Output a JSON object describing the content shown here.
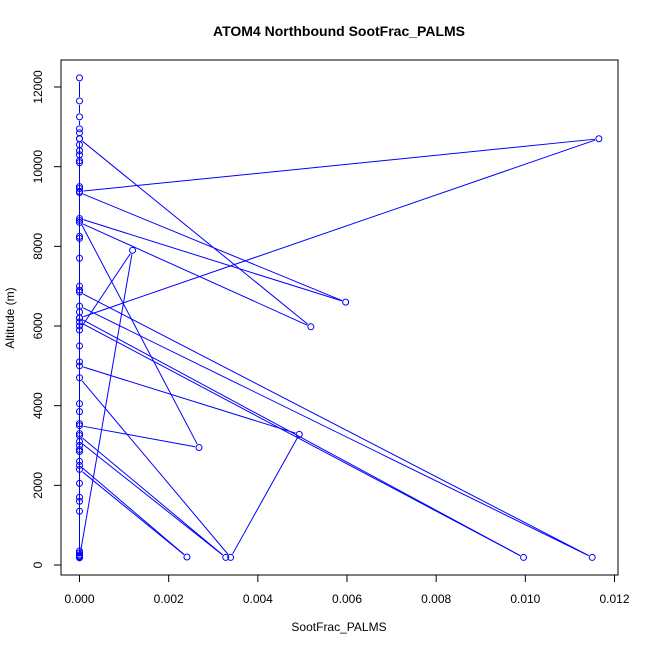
{
  "chart_data": {
    "type": "line",
    "title": "ATOM4 Northbound SootFrac_PALMS",
    "xlabel": "SootFrac_PALMS",
    "ylabel": "Altitude (m)",
    "xlim": [
      0,
      0.012
    ],
    "ylim": [
      0,
      12000
    ],
    "x_ticks": [
      "0.000",
      "0.002",
      "0.004",
      "0.006",
      "0.008",
      "0.010",
      "0.012"
    ],
    "y_ticks": [
      "0",
      "2000",
      "4000",
      "6000",
      "8000",
      "10000",
      "12000"
    ],
    "grid": false,
    "legend": "none",
    "series": [
      {
        "color": "#0000ff",
        "marker": "open-circle",
        "points": [
          [
            0.0,
            12230
          ],
          [
            0.0,
            11650
          ],
          [
            0.0,
            11250
          ],
          [
            0.0,
            10950
          ],
          [
            0.0,
            10850
          ],
          [
            0.0,
            10700
          ],
          [
            0.0,
            10550
          ],
          [
            0.0,
            10400
          ],
          [
            0.0,
            10300
          ],
          [
            0.0,
            10150
          ],
          [
            0.0,
            10100
          ],
          [
            0.0,
            9500
          ],
          [
            0.0,
            9450
          ],
          [
            0.0,
            9380
          ],
          [
            0.01165,
            10700
          ],
          [
            0.0,
            6200
          ],
          [
            0.0,
            9350
          ],
          [
            0.00597,
            6600
          ],
          [
            0.0,
            8700
          ],
          [
            0.0,
            8600
          ],
          [
            0.00519,
            5980
          ],
          [
            0.0,
            10700
          ],
          [
            0.0,
            8250
          ],
          [
            0.0,
            8200
          ],
          [
            0.0,
            7700
          ],
          [
            0.0,
            7000
          ],
          [
            0.0,
            6900
          ],
          [
            0.0,
            6850
          ],
          [
            0.0115,
            190
          ],
          [
            0.0,
            6500
          ],
          [
            0.0,
            6350
          ],
          [
            0.0,
            6200
          ],
          [
            0.00996,
            190
          ],
          [
            0.0,
            6100
          ],
          [
            0.0,
            6000
          ],
          [
            0.0,
            5900
          ],
          [
            0.00119,
            7900
          ],
          [
            0.0,
            180
          ],
          [
            0.0,
            5500
          ],
          [
            0.0,
            5100
          ],
          [
            0.0,
            5000
          ],
          [
            0.00493,
            3280
          ],
          [
            0.00339,
            190
          ],
          [
            0.0,
            4700
          ],
          [
            0.0,
            4050
          ],
          [
            0.0,
            3850
          ],
          [
            0.0,
            3550
          ],
          [
            0.0,
            3500
          ],
          [
            0.00268,
            2950
          ],
          [
            0.0,
            8650
          ],
          [
            0.0,
            3300
          ],
          [
            0.0,
            3250
          ],
          [
            0.00328,
            190
          ],
          [
            0.0,
            3100
          ],
          [
            0.0,
            3000
          ],
          [
            0.0,
            2900
          ],
          [
            0.0,
            2850
          ],
          [
            0.0,
            2600
          ],
          [
            0.0,
            2500
          ],
          [
            0.00241,
            200
          ],
          [
            0.0,
            2400
          ],
          [
            0.0,
            2050
          ],
          [
            0.0,
            1700
          ],
          [
            0.0,
            1600
          ],
          [
            0.0,
            1350
          ],
          [
            0.0,
            350
          ],
          [
            0.0,
            300
          ],
          [
            0.0,
            250
          ],
          [
            0.0,
            220
          ],
          [
            0.0,
            200
          ],
          [
            0.0,
            190
          ]
        ]
      }
    ]
  }
}
